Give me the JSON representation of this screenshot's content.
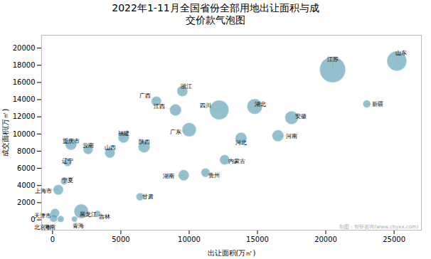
{
  "chart_data": {
    "type": "bubble",
    "title": "2022年1-11月全国省份全部用地出让面积与成\n交价款气泡图",
    "xlabel": "出让面积(万㎡)",
    "ylabel": "成交面积(万㎡)",
    "xlim": [
      -800,
      27000
    ],
    "ylim": [
      -1200,
      21500
    ],
    "xticks": [
      0,
      5000,
      10000,
      15000,
      20000,
      25000
    ],
    "yticks": [
      0,
      2000,
      4000,
      6000,
      8000,
      10000,
      12000,
      14000,
      16000,
      18000,
      20000
    ],
    "grid": false,
    "color": "#5b9db5",
    "points": [
      {
        "name": "北京市",
        "x": 80,
        "y": 200,
        "size": 120,
        "label_x": -700,
        "label_y": -900
      },
      {
        "name": "天津市",
        "x": 180,
        "y": 800,
        "size": 150,
        "label_x": -700,
        "label_y": 500
      },
      {
        "name": "上海市",
        "x": 420,
        "y": 3500,
        "size": 200,
        "label_x": -650,
        "label_y": 3400
      },
      {
        "name": "海南",
        "x": 600,
        "y": 100,
        "size": 80,
        "label_x": -200,
        "label_y": -900
      },
      {
        "name": "宁夏",
        "x": 850,
        "y": 4500,
        "size": 90,
        "label_x": 1100,
        "label_y": 4600
      },
      {
        "name": "辽宁",
        "x": 1100,
        "y": 6700,
        "size": 120,
        "label_x": 1100,
        "label_y": 6800
      },
      {
        "name": "重庆市",
        "x": 1350,
        "y": 8800,
        "size": 250,
        "label_x": 1350,
        "label_y": 9200
      },
      {
        "name": "青海",
        "x": 1600,
        "y": 100,
        "size": 60,
        "label_x": 1900,
        "label_y": -700
      },
      {
        "name": "黑龙江",
        "x": 2100,
        "y": 1000,
        "size": 400,
        "label_x": 2600,
        "label_y": 600
      },
      {
        "name": "吉林",
        "x": 3300,
        "y": 700,
        "size": 80,
        "label_x": 3800,
        "label_y": 400
      },
      {
        "name": "云南",
        "x": 2600,
        "y": 8200,
        "size": 180,
        "label_x": 2600,
        "label_y": 8700
      },
      {
        "name": "山西",
        "x": 4200,
        "y": 7800,
        "size": 200,
        "label_x": 4200,
        "label_y": 8400
      },
      {
        "name": "福建",
        "x": 5200,
        "y": 9600,
        "size": 230,
        "label_x": 5200,
        "label_y": 10100
      },
      {
        "name": "甘肃",
        "x": 6400,
        "y": 2700,
        "size": 110,
        "label_x": 7000,
        "label_y": 2700
      },
      {
        "name": "陕西",
        "x": 6700,
        "y": 8500,
        "size": 260,
        "label_x": 6700,
        "label_y": 9100
      },
      {
        "name": "广西",
        "x": 7600,
        "y": 13800,
        "size": 190,
        "label_x": 6800,
        "label_y": 14500
      },
      {
        "name": "江西",
        "x": 9000,
        "y": 12800,
        "size": 260,
        "label_x": 7800,
        "label_y": 13200
      },
      {
        "name": "浙江",
        "x": 9500,
        "y": 15000,
        "size": 220,
        "label_x": 9800,
        "label_y": 15500
      },
      {
        "name": "广东",
        "x": 10000,
        "y": 10500,
        "size": 380,
        "label_x": 9000,
        "label_y": 10200
      },
      {
        "name": "湖南",
        "x": 9600,
        "y": 5200,
        "size": 220,
        "label_x": 8500,
        "label_y": 5100
      },
      {
        "name": "贵州",
        "x": 11200,
        "y": 5500,
        "size": 150,
        "label_x": 11800,
        "label_y": 5200
      },
      {
        "name": "四川",
        "x": 12200,
        "y": 12800,
        "size": 720,
        "label_x": 11200,
        "label_y": 13300
      },
      {
        "name": "内蒙古",
        "x": 12600,
        "y": 7000,
        "size": 190,
        "label_x": 13500,
        "label_y": 6800
      },
      {
        "name": "河北",
        "x": 13800,
        "y": 9500,
        "size": 260,
        "label_x": 13800,
        "label_y": 9000
      },
      {
        "name": "湖北",
        "x": 14800,
        "y": 13200,
        "size": 450,
        "label_x": 15200,
        "label_y": 13500
      },
      {
        "name": "河南",
        "x": 16500,
        "y": 9800,
        "size": 260,
        "label_x": 17500,
        "label_y": 9700
      },
      {
        "name": "安徽",
        "x": 17500,
        "y": 11900,
        "size": 340,
        "label_x": 18200,
        "label_y": 12100
      },
      {
        "name": "江苏",
        "x": 20500,
        "y": 17500,
        "size": 1300,
        "label_x": 20500,
        "label_y": 18700
      },
      {
        "name": "新疆",
        "x": 23000,
        "y": 13500,
        "size": 110,
        "label_x": 23800,
        "label_y": 13500
      },
      {
        "name": "山东",
        "x": 25200,
        "y": 18500,
        "size": 760,
        "label_x": 25500,
        "label_y": 19400
      }
    ],
    "annotations": [
      "制图：智研咨询(www.chyxx.com)"
    ]
  }
}
